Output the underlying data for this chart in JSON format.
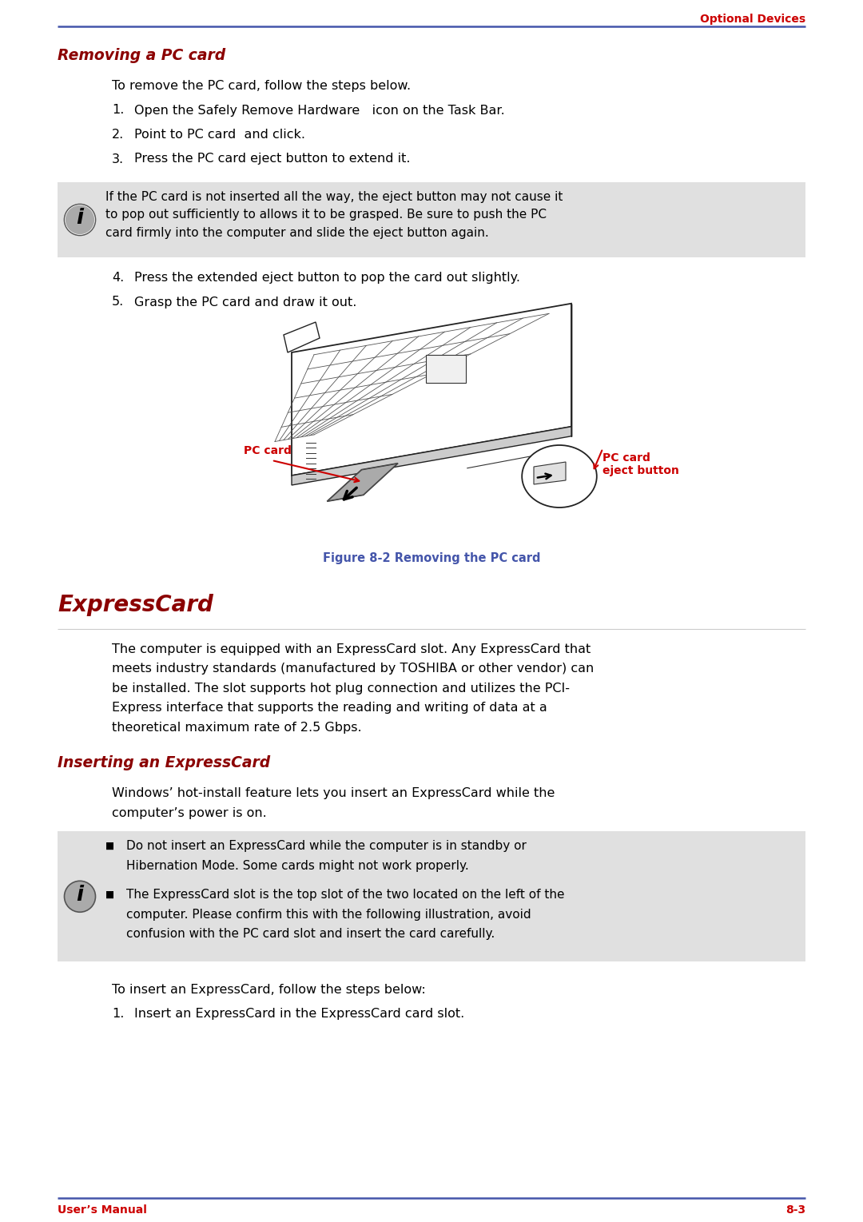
{
  "page_width": 10.8,
  "page_height": 15.29,
  "dpi": 100,
  "bg_color": "#ffffff",
  "header_text": "Optional Devices",
  "header_color": "#cc0000",
  "header_line_color": "#4455aa",
  "footer_left": "User’s Manual",
  "footer_right": "8-3",
  "footer_color": "#cc0000",
  "section1_title": "Removing a PC card",
  "section1_title_color": "#8b0000",
  "section1_intro": "To remove the PC card, follow the steps below.",
  "section1_steps": [
    "Open the Safely Remove Hardware   icon on the Task Bar.",
    "Point to PC card  and click.",
    "Press the PC card eject button to extend it."
  ],
  "note1_text": "If the PC card is not inserted all the way, the eject button may not cause it\nto pop out sufficiently to allows it to be grasped. Be sure to push the PC\ncard firmly into the computer and slide the eject button again.",
  "note_bg": "#e0e0e0",
  "section1_steps2": [
    "Press the extended eject button to pop the card out slightly.",
    "Grasp the PC card and draw it out."
  ],
  "figure_caption": "Figure 8-2 Removing the PC card",
  "figure_caption_color": "#4455aa",
  "label_pc_card": "PC card",
  "label_eject_button": "PC card\neject button",
  "section2_title": "ExpressCard",
  "section2_title_color": "#8b0000",
  "section2_body_lines": [
    "The computer is equipped with an ExpressCard slot. Any ExpressCard that",
    "meets industry standards (manufactured by TOSHIBA or other vendor) can",
    "be installed. The slot supports hot plug connection and utilizes the PCI-",
    "Express interface that supports the reading and writing of data at a",
    "theoretical maximum rate of 2.5 Gbps."
  ],
  "section3_title": "Inserting an ExpressCard",
  "section3_title_color": "#8b0000",
  "section3_intro_lines": [
    "Windows’ hot-install feature lets you insert an ExpressCard while the",
    "computer’s power is on."
  ],
  "note2_bullets": [
    [
      "Do not insert an ExpressCard while the computer is in standby or",
      "Hibernation Mode. Some cards might not work properly."
    ],
    [
      "The ExpressCard slot is the top slot of the two located on the left of the",
      "computer. Please confirm this with the following illustration, avoid",
      "confusion with the PC card slot and insert the card carefully."
    ]
  ],
  "section3_step_intro": "To insert an ExpressCard, follow the steps below:",
  "section3_steps": [
    "Insert an ExpressCard in the ExpressCard card slot."
  ],
  "ml": 0.72,
  "mr": 0.72,
  "indent": 1.4,
  "body_fs": 11.5,
  "title1_fs": 13.5,
  "section2_title_fs": 20,
  "title3_fs": 13.5,
  "header_fs": 10,
  "footer_fs": 10,
  "caption_fs": 10.5
}
